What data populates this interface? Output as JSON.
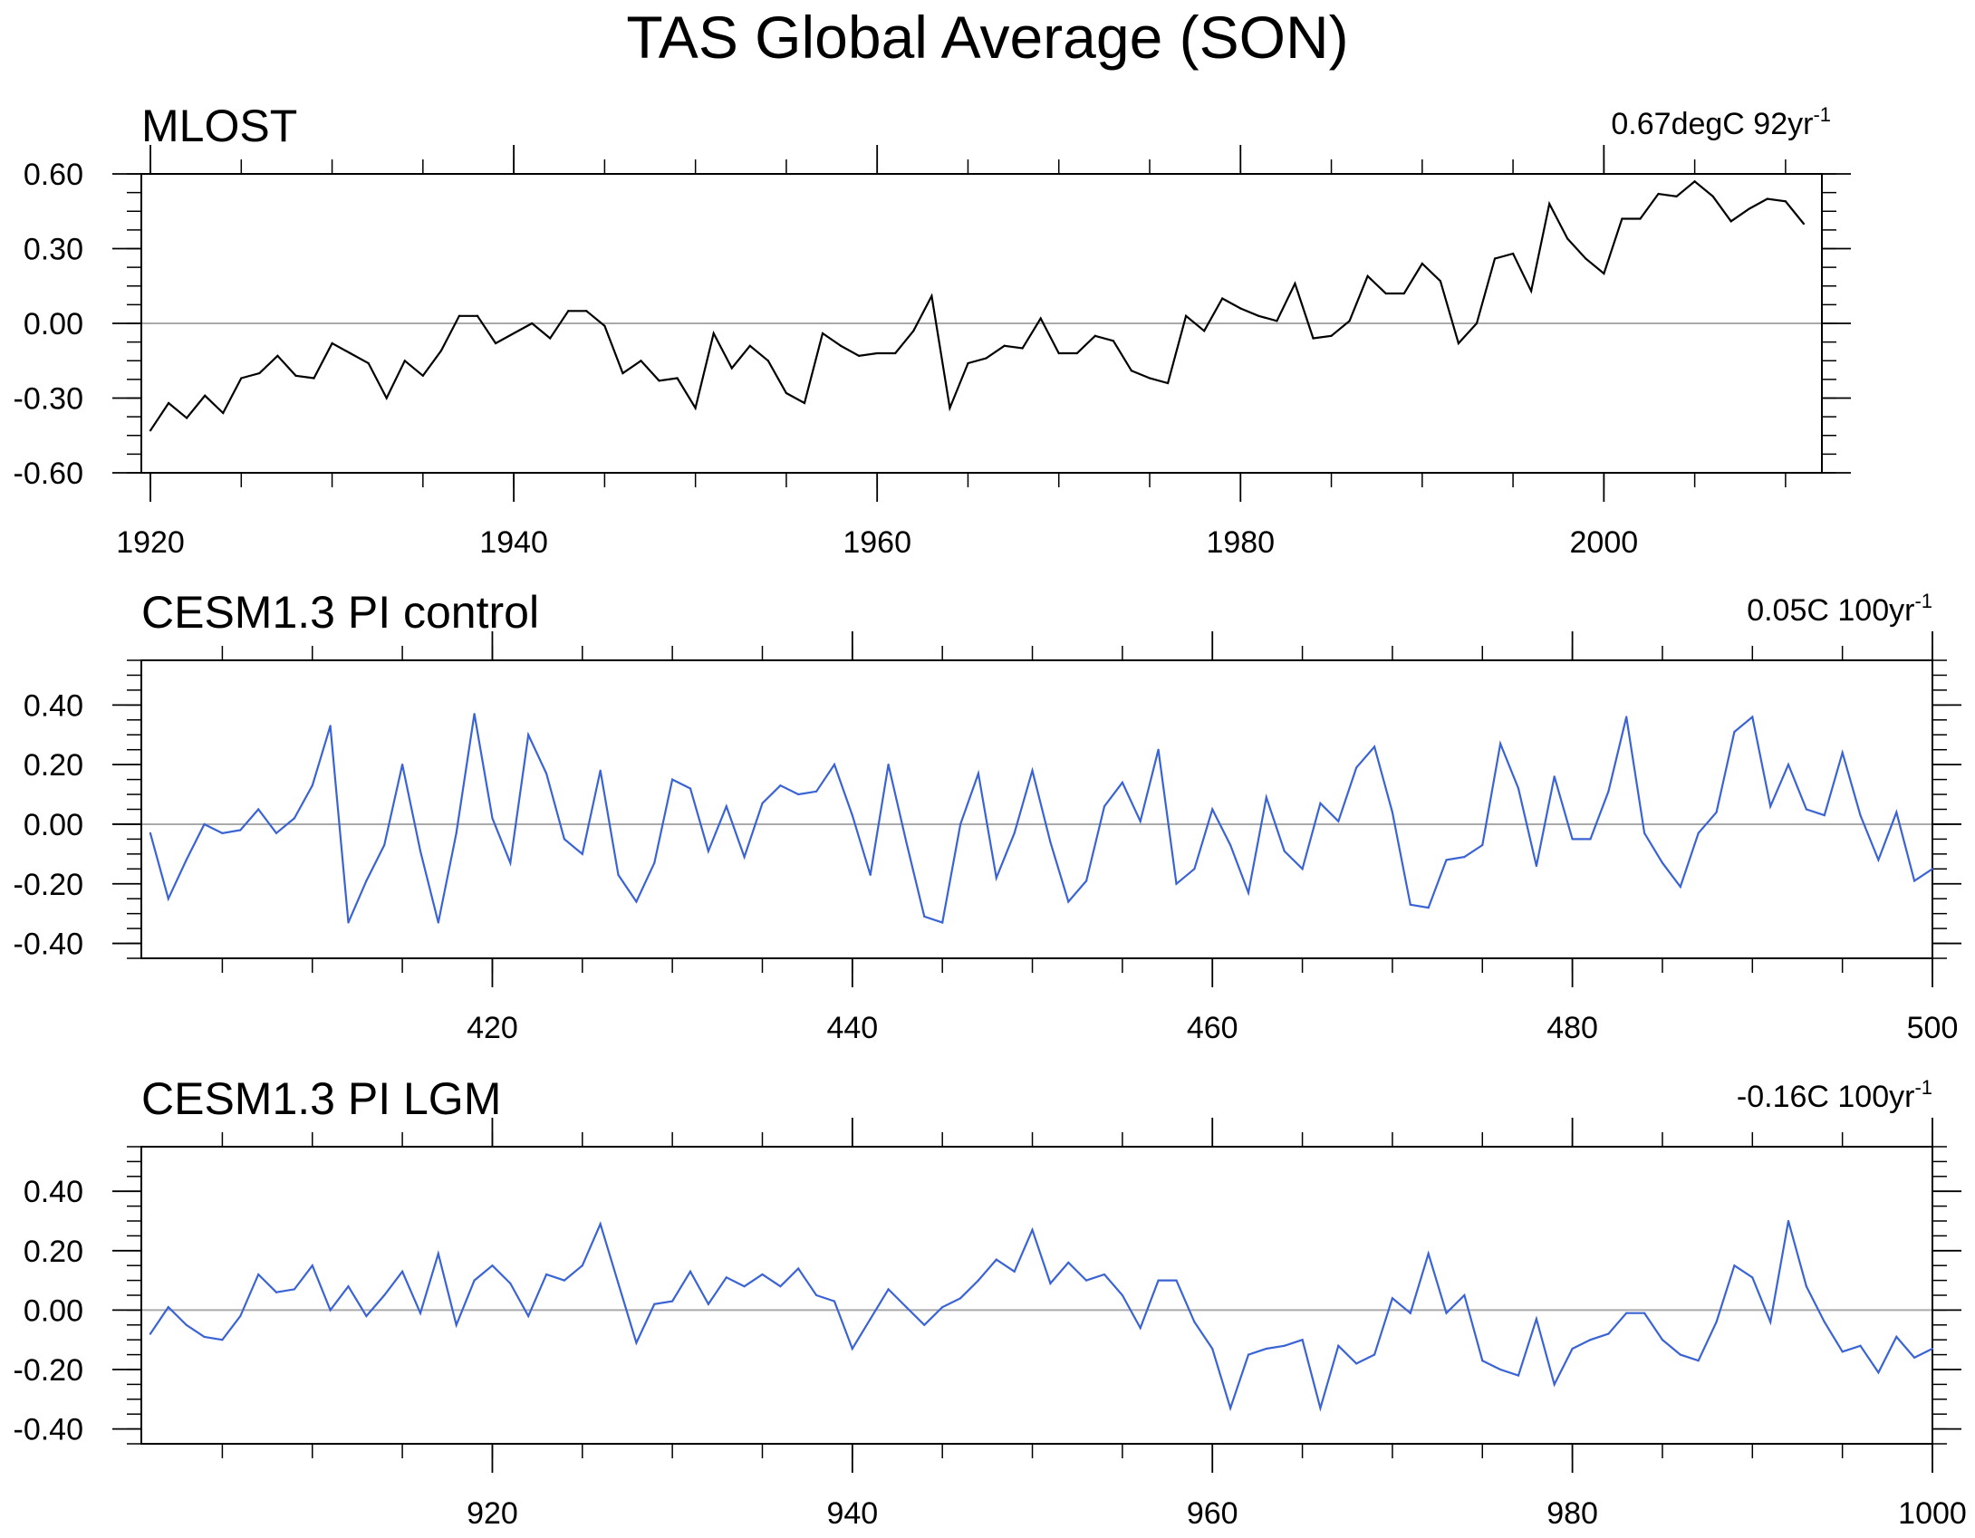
{
  "figure": {
    "title": "TAS Global Average (SON)"
  },
  "chart_data": [
    {
      "type": "line",
      "title": "MLOST",
      "annotation": {
        "value": "0.67degC 92yr",
        "superscript": "-1"
      },
      "color": "#000000",
      "xlim": [
        1919.5,
        2012
      ],
      "ylim": [
        -0.6,
        0.6
      ],
      "xticks": [
        {
          "value": 1920,
          "label": "1920"
        },
        {
          "value": 1940,
          "label": "1940"
        },
        {
          "value": 1960,
          "label": "1960"
        },
        {
          "value": 1980,
          "label": "1980"
        },
        {
          "value": 2000,
          "label": "2000"
        }
      ],
      "yticks": [
        {
          "value": -0.6,
          "label": "-0.60"
        },
        {
          "value": -0.3,
          "label": "-0.30"
        },
        {
          "value": 0.0,
          "label": "0.00"
        },
        {
          "value": 0.3,
          "label": "0.30"
        },
        {
          "value": 0.6,
          "label": "0.60"
        }
      ],
      "xminor_step": 5,
      "yminor_step": 0.075,
      "zero_line": true,
      "x_start": 1920,
      "values": [
        -0.43,
        -0.32,
        -0.38,
        -0.29,
        -0.36,
        -0.22,
        -0.2,
        -0.13,
        -0.21,
        -0.22,
        -0.08,
        -0.12,
        -0.16,
        -0.3,
        -0.15,
        -0.21,
        -0.11,
        0.03,
        0.03,
        -0.08,
        -0.04,
        0.0,
        -0.06,
        0.05,
        0.05,
        -0.01,
        -0.2,
        -0.15,
        -0.23,
        -0.22,
        -0.34,
        -0.04,
        -0.18,
        -0.09,
        -0.15,
        -0.28,
        -0.32,
        -0.04,
        -0.09,
        -0.13,
        -0.12,
        -0.12,
        -0.03,
        0.11,
        -0.34,
        -0.16,
        -0.14,
        -0.09,
        -0.1,
        0.02,
        -0.12,
        -0.12,
        -0.05,
        -0.07,
        -0.19,
        -0.22,
        -0.24,
        0.03,
        -0.03,
        0.1,
        0.06,
        0.03,
        0.01,
        0.16,
        -0.06,
        -0.05,
        0.01,
        0.19,
        0.12,
        0.12,
        0.24,
        0.17,
        -0.08,
        0.0,
        0.26,
        0.28,
        0.13,
        0.48,
        0.34,
        0.26,
        0.2,
        0.42,
        0.42,
        0.52,
        0.51,
        0.57,
        0.51,
        0.41,
        0.46,
        0.5,
        0.49,
        0.4
      ]
    },
    {
      "type": "line",
      "title": "CESM1.3 PI control",
      "annotation": {
        "value": "0.05C 100yr",
        "superscript": "-1"
      },
      "color": "#3a63d4",
      "xlim": [
        400.5,
        500
      ],
      "ylim": [
        -0.45,
        0.55
      ],
      "xticks": [
        {
          "value": 420,
          "label": "420"
        },
        {
          "value": 440,
          "label": "440"
        },
        {
          "value": 460,
          "label": "460"
        },
        {
          "value": 480,
          "label": "480"
        },
        {
          "value": 500,
          "label": "500"
        }
      ],
      "yticks": [
        {
          "value": -0.4,
          "label": "-0.40"
        },
        {
          "value": -0.2,
          "label": "-0.20"
        },
        {
          "value": 0.0,
          "label": "0.00"
        },
        {
          "value": 0.2,
          "label": "0.20"
        },
        {
          "value": 0.4,
          "label": "0.40"
        }
      ],
      "xminor_step": 5,
      "yminor_step": 0.05,
      "zero_line": true,
      "x_start": 401,
      "values": [
        -0.03,
        -0.25,
        -0.12,
        0.0,
        -0.03,
        -0.02,
        0.05,
        -0.03,
        0.02,
        0.13,
        0.33,
        -0.33,
        -0.19,
        -0.07,
        0.2,
        -0.09,
        -0.33,
        -0.03,
        0.37,
        0.02,
        -0.13,
        0.3,
        0.17,
        -0.05,
        -0.1,
        0.18,
        -0.17,
        -0.26,
        -0.13,
        0.15,
        0.12,
        -0.09,
        0.06,
        -0.11,
        0.07,
        0.13,
        0.1,
        0.11,
        0.2,
        0.03,
        -0.17,
        0.2,
        -0.06,
        -0.31,
        -0.33,
        0.0,
        0.17,
        -0.18,
        -0.03,
        0.18,
        -0.06,
        -0.26,
        -0.19,
        0.06,
        0.14,
        0.01,
        0.25,
        -0.2,
        -0.15,
        0.05,
        -0.07,
        -0.23,
        0.09,
        -0.09,
        -0.15,
        0.07,
        0.01,
        0.19,
        0.26,
        0.04,
        -0.27,
        -0.28,
        -0.12,
        -0.11,
        -0.07,
        0.27,
        0.12,
        -0.14,
        0.16,
        -0.05,
        -0.05,
        0.11,
        0.36,
        -0.03,
        -0.13,
        -0.21,
        -0.03,
        0.04,
        0.31,
        0.36,
        0.06,
        0.2,
        0.05,
        0.03,
        0.24,
        0.03,
        -0.12,
        0.04,
        -0.19,
        -0.15
      ]
    },
    {
      "type": "line",
      "title": "CESM1.3 PI LGM",
      "annotation": {
        "value": "-0.16C 100yr",
        "superscript": "-1"
      },
      "color": "#3a63d4",
      "xlim": [
        900.5,
        1000
      ],
      "ylim": [
        -0.45,
        0.55
      ],
      "xticks": [
        {
          "value": 920,
          "label": "920"
        },
        {
          "value": 940,
          "label": "940"
        },
        {
          "value": 960,
          "label": "960"
        },
        {
          "value": 980,
          "label": "980"
        },
        {
          "value": 1000,
          "label": "1000"
        }
      ],
      "yticks": [
        {
          "value": -0.4,
          "label": "-0.40"
        },
        {
          "value": -0.2,
          "label": "-0.20"
        },
        {
          "value": 0.0,
          "label": "0.00"
        },
        {
          "value": 0.2,
          "label": "0.20"
        },
        {
          "value": 0.4,
          "label": "0.40"
        }
      ],
      "xminor_step": 5,
      "yminor_step": 0.05,
      "zero_line": true,
      "x_start": 901,
      "values": [
        -0.08,
        0.01,
        -0.05,
        -0.09,
        -0.1,
        -0.02,
        0.12,
        0.06,
        0.07,
        0.15,
        0.0,
        0.08,
        -0.02,
        0.05,
        0.13,
        -0.01,
        0.19,
        -0.05,
        0.1,
        0.15,
        0.09,
        -0.02,
        0.12,
        0.1,
        0.15,
        0.29,
        0.09,
        -0.11,
        0.02,
        0.03,
        0.13,
        0.02,
        0.11,
        0.08,
        0.12,
        0.08,
        0.14,
        0.05,
        0.03,
        -0.13,
        -0.03,
        0.07,
        0.01,
        -0.05,
        0.01,
        0.04,
        0.1,
        0.17,
        0.13,
        0.27,
        0.09,
        0.16,
        0.1,
        0.12,
        0.05,
        -0.06,
        0.1,
        0.1,
        -0.04,
        -0.13,
        -0.33,
        -0.15,
        -0.13,
        -0.12,
        -0.1,
        -0.33,
        -0.12,
        -0.18,
        -0.15,
        0.04,
        -0.01,
        0.19,
        -0.01,
        0.05,
        -0.17,
        -0.2,
        -0.22,
        -0.03,
        -0.25,
        -0.13,
        -0.1,
        -0.08,
        -0.01,
        -0.01,
        -0.1,
        -0.15,
        -0.17,
        -0.04,
        0.15,
        0.11,
        -0.04,
        0.3,
        0.08,
        -0.04,
        -0.14,
        -0.12,
        -0.21,
        -0.09,
        -0.16,
        -0.13
      ]
    }
  ]
}
